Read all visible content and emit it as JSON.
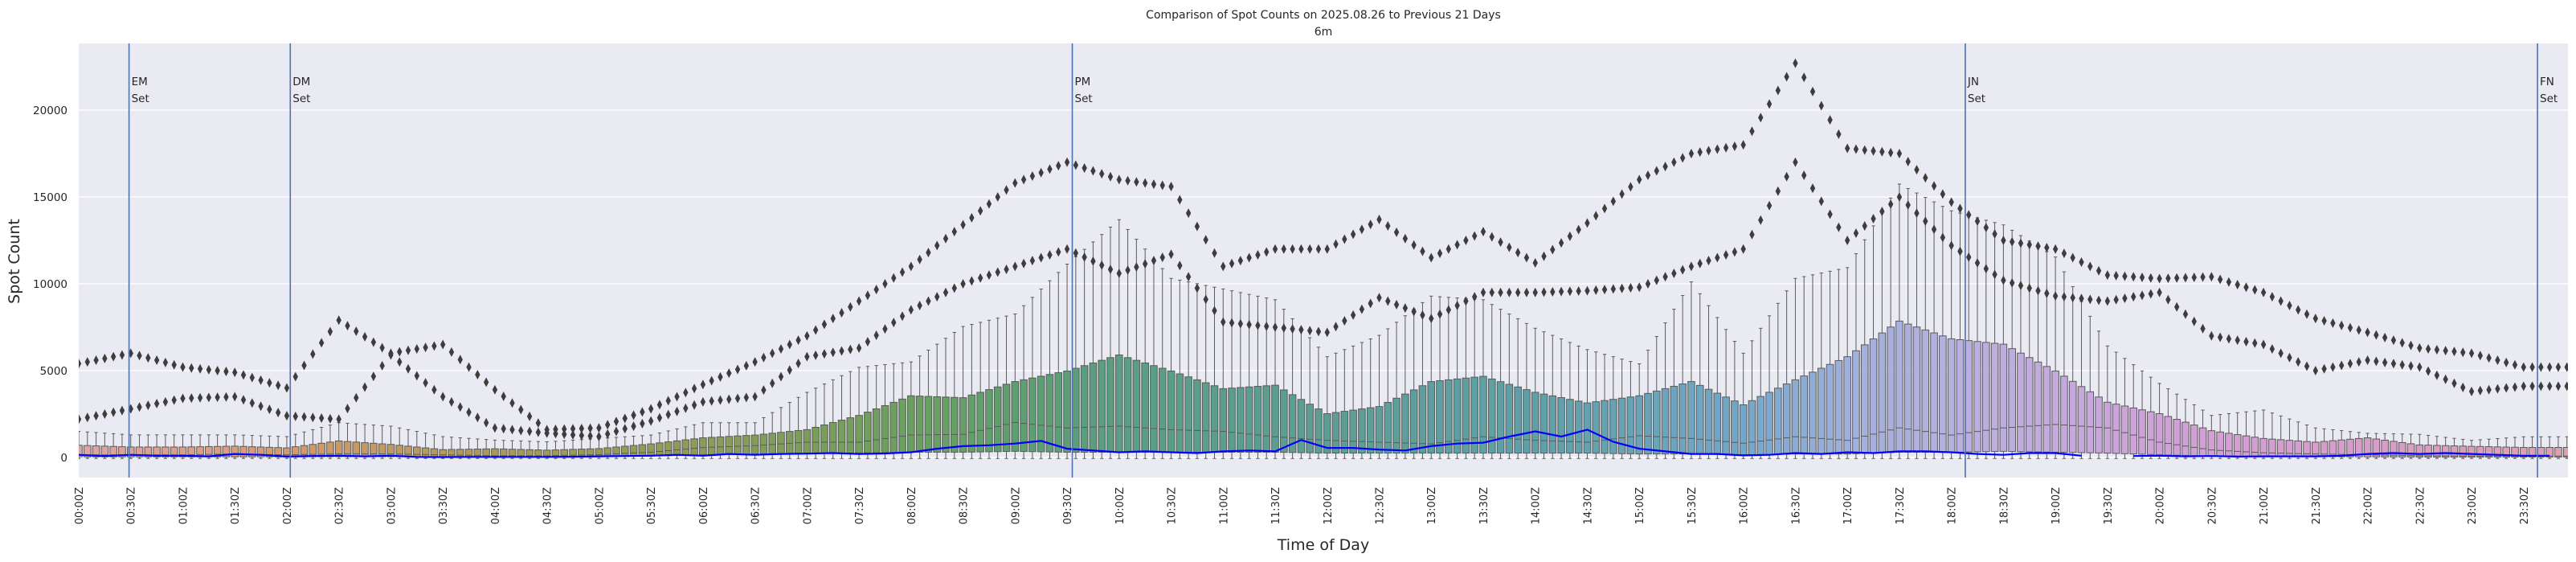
{
  "chart_data": {
    "type": "box",
    "title": "Comparison of Spot Counts on 2025.08.26 to Previous 21 Days",
    "subtitle": "6m",
    "xlabel": "Time of Day",
    "ylabel": "Spot Count",
    "ylim": [
      -1160,
      23840
    ],
    "yticks": [
      0,
      5000,
      10000,
      15000,
      20000
    ],
    "grid": true,
    "interval_minutes": 5,
    "xticks": [
      "00:00Z",
      "00:30Z",
      "01:00Z",
      "01:30Z",
      "02:00Z",
      "02:30Z",
      "03:00Z",
      "03:30Z",
      "04:00Z",
      "04:30Z",
      "05:00Z",
      "05:30Z",
      "06:00Z",
      "06:30Z",
      "07:00Z",
      "07:30Z",
      "08:00Z",
      "08:30Z",
      "09:00Z",
      "09:30Z",
      "10:00Z",
      "10:30Z",
      "11:00Z",
      "11:30Z",
      "12:00Z",
      "12:30Z",
      "13:00Z",
      "13:30Z",
      "14:00Z",
      "14:30Z",
      "15:00Z",
      "15:30Z",
      "16:00Z",
      "16:30Z",
      "17:00Z",
      "17:30Z",
      "18:00Z",
      "18:30Z",
      "19:00Z",
      "19:30Z",
      "20:00Z",
      "20:30Z",
      "21:00Z",
      "21:30Z",
      "22:00Z",
      "22:30Z",
      "23:00Z",
      "23:30Z"
    ],
    "previous_21_days": {
      "resolution": "30 min (sampled)",
      "q1": [
        30,
        30,
        30,
        30,
        30,
        40,
        40,
        30,
        20,
        20,
        40,
        80,
        150,
        200,
        250,
        250,
        300,
        300,
        350,
        300,
        300,
        300,
        300,
        300,
        250,
        250,
        250,
        250,
        250,
        250,
        200,
        200,
        150,
        200,
        200,
        300,
        300,
        350,
        300,
        250,
        150,
        80,
        50,
        40,
        30,
        20,
        20,
        20
      ],
      "median": [
        150,
        150,
        150,
        200,
        150,
        200,
        200,
        150,
        100,
        100,
        160,
        300,
        570,
        680,
        880,
        880,
        1290,
        1330,
        2010,
        1700,
        1800,
        1600,
        1500,
        1190,
        985,
        880,
        780,
        1190,
        985,
        880,
        1250,
        1090,
        820,
        1190,
        985,
        1700,
        1290,
        1700,
        1900,
        1700,
        880,
        430,
        270,
        200,
        150,
        100,
        80,
        80
      ],
      "q3": [
        700,
        600,
        600,
        650,
        550,
        950,
        750,
        450,
        500,
        420,
        510,
        780,
        1130,
        1290,
        1600,
        2420,
        3550,
        3440,
        4370,
        4980,
        5900,
        4980,
        3960,
        4160,
        2520,
        2930,
        4370,
        4670,
        3750,
        3140,
        3550,
        4370,
        3030,
        4470,
        5800,
        7850,
        6830,
        6520,
        4980,
        3180,
        2520,
        1540,
        1090,
        880,
        1130,
        720,
        640,
        575
      ],
      "whisker_high": [
        1500,
        1300,
        1300,
        1300,
        1200,
        2000,
        1800,
        1200,
        1000,
        900,
        1090,
        1290,
        2000,
        2000,
        3750,
        5190,
        5500,
        7540,
        8260,
        11130,
        13690,
        10310,
        9700,
        9080,
        5800,
        7030,
        9290,
        9080,
        7440,
        6210,
        5390,
        10110,
        6000,
        10310,
        10930,
        15740,
        14200,
        13390,
        11540,
        6420,
        4260,
        2420,
        2730,
        1700,
        1390,
        1330,
        985,
        1190
      ],
      "outlier_max": [
        5400,
        6000,
        5200,
        4900,
        4000,
        7900,
        6000,
        6500,
        3900,
        1600,
        1700,
        2800,
        4200,
        5500,
        7000,
        9000,
        11000,
        13400,
        15800,
        17000,
        16000,
        15600,
        11000,
        12000,
        12000,
        13700,
        11500,
        13000,
        11200,
        13500,
        16000,
        17500,
        18000,
        22700,
        17800,
        17500,
        14700,
        12500,
        12000,
        10500,
        10300,
        10400,
        9500,
        8000,
        7200,
        6300,
        6000,
        5200
      ],
      "outlier_second": [
        2200,
        2800,
        3400,
        3500,
        2400,
        2200,
        5900,
        3500,
        1700,
        1400,
        1200,
        2100,
        3200,
        3500,
        5800,
        6300,
        8500,
        10000,
        11000,
        12000,
        10600,
        11700,
        7800,
        7500,
        7200,
        9200,
        8000,
        9500,
        9500,
        9600,
        9800,
        11000,
        12000,
        17000,
        12500,
        15000,
        12200,
        10200,
        9300,
        9000,
        9500,
        7000,
        6500,
        5000,
        5600,
        5200,
        3800,
        4100
      ]
    },
    "current_day": {
      "resolution": "15 min (sampled)",
      "color": "#0000ff",
      "values": [
        150,
        80,
        150,
        100,
        100,
        60,
        200,
        150,
        50,
        80,
        100,
        60,
        100,
        30,
        20,
        30,
        30,
        30,
        30,
        40,
        60,
        80,
        100,
        150,
        100,
        200,
        150,
        200,
        220,
        250,
        200,
        230,
        300,
        500,
        650,
        700,
        800,
        950,
        500,
        400,
        300,
        350,
        300,
        250,
        350,
        400,
        350,
        1000,
        550,
        550,
        450,
        400,
        650,
        800,
        850,
        1200,
        1500,
        1200,
        1600,
        900,
        500,
        350,
        200,
        200,
        120,
        150,
        250,
        200,
        300,
        250,
        350,
        350,
        300,
        200,
        150,
        250,
        250,
        100,
        null,
        80,
        100,
        60,
        80,
        50,
        60,
        60,
        60,
        100,
        200,
        250,
        200,
        250,
        200,
        150,
        100,
        100
      ]
    },
    "markers": [
      {
        "time": "00:29",
        "line1": "EM",
        "line2": "Set"
      },
      {
        "time": "02:02",
        "line1": "DM",
        "line2": "Set"
      },
      {
        "time": "09:33",
        "line1": "PM",
        "line2": "Set"
      },
      {
        "time": "18:08",
        "line1": "JN",
        "line2": "Set"
      },
      {
        "time": "23:38",
        "line1": "FN",
        "line2": "Set"
      }
    ],
    "colors": {
      "background": "#eaeaf2",
      "grid": "#ffffff",
      "marker_line": "#4c72b0",
      "box_edge": "#5a5a5a",
      "outlier": "#3d3d3d",
      "palette_by_hour": [
        "#dfa3a3",
        "#dba08a",
        "#d39a70",
        "#bf9a60",
        "#a89a5a",
        "#989b58",
        "#8c9c58",
        "#7a9e5a",
        "#6aa05e",
        "#5e9f70",
        "#5a9e84",
        "#5b9e8c",
        "#5c9e94",
        "#5e9f9e",
        "#5fa0a8",
        "#68a3b8",
        "#73a6c8",
        "#a0b0dc",
        "#b6b0e0",
        "#c4aade",
        "#d0a0d8",
        "#d59ed2",
        "#d89cc8",
        "#dc9ebc",
        "#dea0b0"
      ]
    }
  }
}
